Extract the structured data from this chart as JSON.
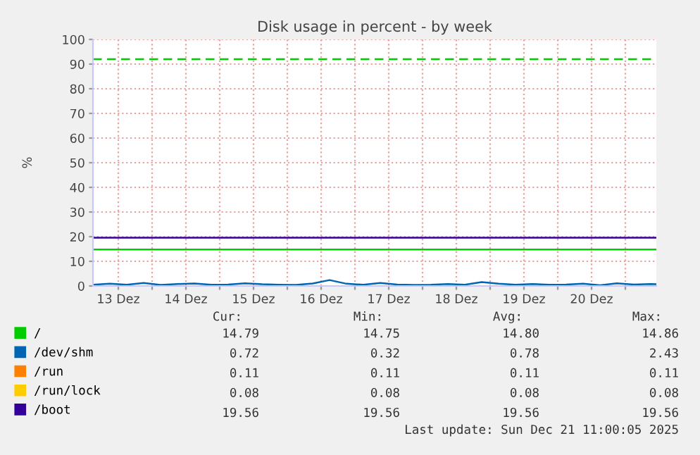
{
  "chart_data": {
    "type": "line",
    "title": "Disk usage in percent - by week",
    "ylabel": "%",
    "x": [
      "2025-12-13T03:00",
      "2025-12-13T09:00",
      "2025-12-13T15:00",
      "2025-12-13T21:00",
      "2025-12-14T03:00",
      "2025-12-14T09:00",
      "2025-12-14T15:00",
      "2025-12-14T21:00",
      "2025-12-15T03:00",
      "2025-12-15T09:00",
      "2025-12-15T15:00",
      "2025-12-15T21:00",
      "2025-12-16T03:00",
      "2025-12-16T09:00",
      "2025-12-16T15:00",
      "2025-12-16T21:00",
      "2025-12-17T03:00",
      "2025-12-17T09:00",
      "2025-12-17T15:00",
      "2025-12-17T21:00",
      "2025-12-18T03:00",
      "2025-12-18T09:00",
      "2025-12-18T15:00",
      "2025-12-18T21:00",
      "2025-12-19T03:00",
      "2025-12-19T09:00",
      "2025-12-19T15:00",
      "2025-12-19T21:00",
      "2025-12-20T03:00",
      "2025-12-20T09:00",
      "2025-12-20T15:00",
      "2025-12-20T21:00",
      "2025-12-21T03:00",
      "2025-12-21T09:00",
      "2025-12-21T11:00"
    ],
    "series": [
      {
        "name": "/",
        "color": "#00cc00",
        "values": [
          14.8,
          14.8,
          14.8,
          14.8,
          14.8,
          14.8,
          14.8,
          14.8,
          14.8,
          14.8,
          14.8,
          14.8,
          14.8,
          14.8,
          14.8,
          14.8,
          14.8,
          14.8,
          14.8,
          14.8,
          14.8,
          14.8,
          14.8,
          14.8,
          14.8,
          14.8,
          14.8,
          14.8,
          14.8,
          14.8,
          14.8,
          14.8,
          14.8,
          14.8,
          14.8
        ]
      },
      {
        "name": "/dev/shm",
        "color": "#0066b3",
        "values": [
          0.5,
          0.9,
          0.5,
          1.2,
          0.4,
          0.8,
          1.0,
          0.5,
          0.6,
          1.1,
          0.7,
          0.5,
          0.4,
          1.0,
          2.4,
          0.9,
          0.5,
          1.2,
          0.6,
          0.4,
          0.5,
          0.8,
          0.5,
          1.6,
          0.9,
          0.5,
          0.8,
          0.5,
          0.6,
          0.9,
          0.3,
          1.1,
          0.6,
          0.8,
          0.7
        ]
      },
      {
        "name": "/run",
        "color": "#ff8000",
        "values": [
          null,
          null,
          null,
          null,
          null,
          null,
          null,
          null,
          null,
          null,
          null,
          null,
          null,
          null,
          null,
          null,
          null,
          null,
          null,
          null,
          null,
          null,
          null,
          null,
          null,
          null,
          null,
          null,
          null,
          null,
          null,
          null,
          null,
          null,
          null
        ]
      },
      {
        "name": "/run/lock",
        "color": "#ffcc00",
        "values": [
          null,
          null,
          null,
          null,
          null,
          null,
          null,
          null,
          null,
          null,
          null,
          null,
          null,
          null,
          null,
          null,
          null,
          null,
          null,
          null,
          null,
          null,
          null,
          null,
          null,
          null,
          null,
          null,
          null,
          null,
          null,
          null,
          null,
          null,
          null
        ]
      },
      {
        "name": "/boot",
        "color": "#330099",
        "values": [
          19.6,
          19.6,
          19.6,
          19.6,
          19.6,
          19.6,
          19.6,
          19.6,
          19.6,
          19.6,
          19.6,
          19.6,
          19.6,
          19.6,
          19.6,
          19.6,
          19.6,
          19.6,
          19.6,
          19.6,
          19.6,
          19.6,
          19.6,
          19.6,
          19.6,
          19.6,
          19.6,
          19.6,
          19.6,
          19.6,
          19.6,
          19.6,
          19.6,
          19.6,
          19.6
        ]
      }
    ],
    "xlim": [
      "2025-12-13T03:00",
      "2025-12-21T11:00"
    ],
    "xticks": [
      {
        "value": "2025-12-13T12:00",
        "label": "13 Dez"
      },
      {
        "value": "2025-12-14T00:00",
        "label": null
      },
      {
        "value": "2025-12-14T12:00",
        "label": "14 Dez"
      },
      {
        "value": "2025-12-15T00:00",
        "label": null
      },
      {
        "value": "2025-12-15T12:00",
        "label": "15 Dez"
      },
      {
        "value": "2025-12-16T00:00",
        "label": null
      },
      {
        "value": "2025-12-16T12:00",
        "label": "16 Dez"
      },
      {
        "value": "2025-12-17T00:00",
        "label": null
      },
      {
        "value": "2025-12-17T12:00",
        "label": "17 Dez"
      },
      {
        "value": "2025-12-18T00:00",
        "label": null
      },
      {
        "value": "2025-12-18T12:00",
        "label": "18 Dez"
      },
      {
        "value": "2025-12-19T00:00",
        "label": null
      },
      {
        "value": "2025-12-19T12:00",
        "label": "19 Dez"
      },
      {
        "value": "2025-12-20T00:00",
        "label": null
      },
      {
        "value": "2025-12-20T12:00",
        "label": "20 Dez"
      },
      {
        "value": "2025-12-21T00:00",
        "label": null
      }
    ],
    "ylim": [
      0,
      100
    ],
    "yticks": [
      0,
      10,
      20,
      30,
      40,
      50,
      60,
      70,
      80,
      90,
      100
    ],
    "grid": true,
    "legend": "bottom",
    "marker": "none",
    "line_style": "solid",
    "ref_lines": [
      {
        "axis": "y",
        "value": 92,
        "color": "#00cc00",
        "line_style": "dashed",
        "label": null
      }
    ],
    "annotations": [
      "Cur:",
      "Min:",
      "Avg:",
      "Max:",
      "14.79",
      "14.75",
      "14.80",
      "14.86",
      "0.72",
      "0.32",
      "0.78",
      "2.43",
      "0.11",
      "0.11",
      "0.11",
      "0.11",
      "0.08",
      "0.08",
      "0.08",
      "0.08",
      "19.56",
      "19.56",
      "19.56",
      "19.56",
      "Last update: Sun Dec 21 11:00:05 2025"
    ]
  }
}
